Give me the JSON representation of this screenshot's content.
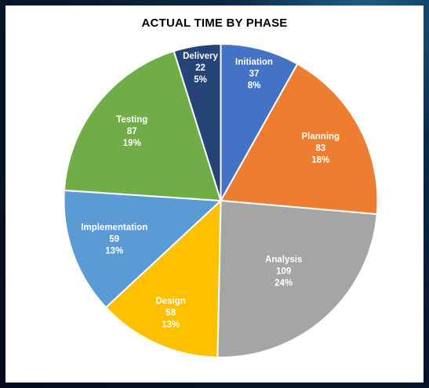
{
  "chart_data": {
    "type": "pie",
    "title": "ACTUAL TIME BY PHASE",
    "slices": [
      {
        "label": "Initiation",
        "value": 37,
        "percent_label": "8%",
        "color": "#4472c4"
      },
      {
        "label": "Planning",
        "value": 83,
        "percent_label": "18%",
        "color": "#ed7d31"
      },
      {
        "label": "Analysis",
        "value": 109,
        "percent_label": "24%",
        "color": "#a5a5a5"
      },
      {
        "label": "Design",
        "value": 58,
        "percent_label": "13%",
        "color": "#ffc000"
      },
      {
        "label": "Implementation",
        "value": 59,
        "percent_label": "13%",
        "color": "#5b9bd5"
      },
      {
        "label": "Testing",
        "value": 87,
        "percent_label": "19%",
        "color": "#70ad47"
      },
      {
        "label": "Delivery",
        "value": 22,
        "percent_label": "5%",
        "color": "#264478"
      }
    ],
    "legend": "none",
    "data_labels": "category, value, percentage"
  }
}
